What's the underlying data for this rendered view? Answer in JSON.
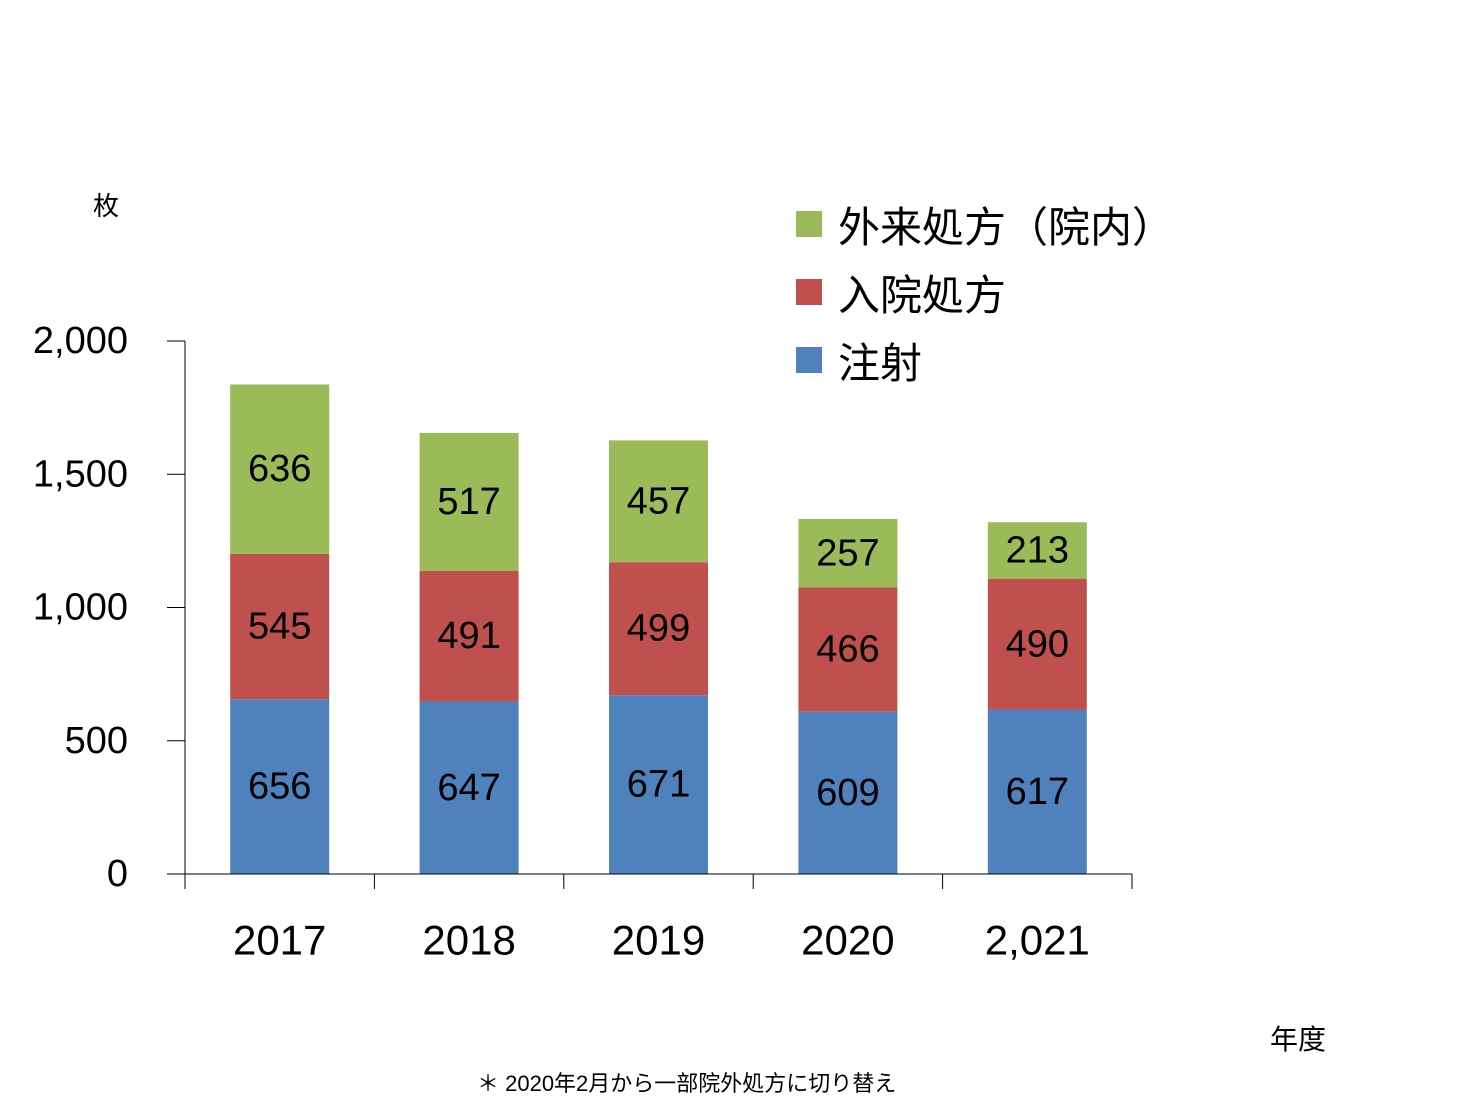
{
  "chart_data": {
    "type": "bar",
    "stacked": true,
    "categories": [
      "2017",
      "2018",
      "2019",
      "2020",
      "2,021"
    ],
    "series": [
      {
        "name": "注射",
        "color": "#4F81BD",
        "values": [
          656,
          647,
          671,
          609,
          617
        ]
      },
      {
        "name": "入院処方",
        "color": "#C0504D",
        "values": [
          545,
          491,
          499,
          466,
          490
        ]
      },
      {
        "name": "外来処方（院内）",
        "color": "#9BBB59",
        "values": [
          636,
          517,
          457,
          257,
          213
        ]
      }
    ],
    "ylabel": "枚",
    "xlabel": "年度",
    "ylim": [
      0,
      2000
    ],
    "yticks": [
      0,
      500,
      1000,
      1500,
      2000
    ],
    "ytick_labels": [
      "0",
      "500",
      "1,000",
      "1,500",
      "2,000"
    ],
    "grid": false,
    "legend_position": "top-right",
    "legend_order": [
      "外来処方（院内）",
      "入院処方",
      "注射"
    ]
  },
  "footnote": "＊ 2020年2月から一部院外処方に切り替え"
}
